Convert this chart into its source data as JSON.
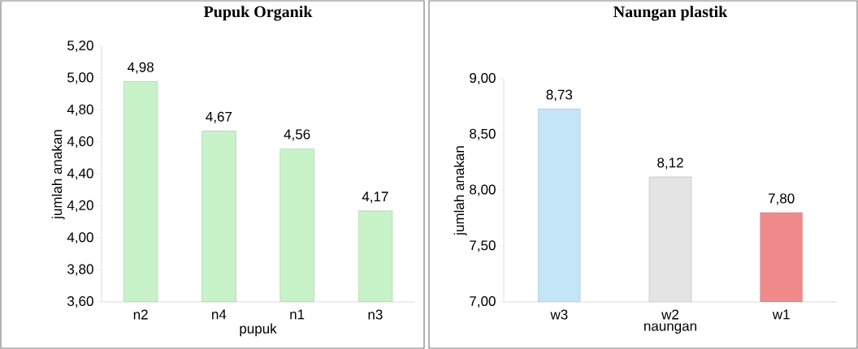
{
  "chart_data": [
    {
      "type": "bar",
      "title": "Pupuk Organik",
      "xlabel": "pupuk",
      "ylabel": "jumlah anakan",
      "categories": [
        "n2",
        "n4",
        "n1",
        "n3"
      ],
      "values": [
        4.98,
        4.67,
        4.56,
        4.17
      ],
      "value_labels": [
        "4,98",
        "4,67",
        "4,56",
        "4,17"
      ],
      "colors": [
        "#c8f2c8",
        "#c8f2c8",
        "#c8f2c8",
        "#c8f2c8"
      ],
      "ylim": [
        3.6,
        5.2
      ],
      "yticks": [
        {
          "value": 3.6,
          "label": "3,60"
        },
        {
          "value": 3.8,
          "label": "3,80"
        },
        {
          "value": 4.0,
          "label": "4,00"
        },
        {
          "value": 4.2,
          "label": "4,20"
        },
        {
          "value": 4.4,
          "label": "4,40"
        },
        {
          "value": 4.6,
          "label": "4,60"
        },
        {
          "value": 4.8,
          "label": "4,80"
        },
        {
          "value": 5.0,
          "label": "5,00"
        },
        {
          "value": 5.2,
          "label": "5,20"
        }
      ]
    },
    {
      "type": "bar",
      "title": "Naungan plastik",
      "xlabel": "naungan",
      "ylabel": "jumlah anakan",
      "categories": [
        "w3",
        "w2",
        "w1"
      ],
      "values": [
        8.73,
        8.12,
        7.8
      ],
      "value_labels": [
        "8,73",
        "8,12",
        "7,80"
      ],
      "colors": [
        "#c4e4f8",
        "#e4e4e4",
        "#f08a8a"
      ],
      "ylim": [
        7,
        9
      ],
      "yticks": [
        {
          "value": 7,
          "label": "7,00"
        },
        {
          "value": 7.5,
          "label": "7,50"
        },
        {
          "value": 8,
          "label": "8,00"
        },
        {
          "value": 8.5,
          "label": "8,50"
        },
        {
          "value": 9,
          "label": "9,00"
        }
      ]
    }
  ]
}
